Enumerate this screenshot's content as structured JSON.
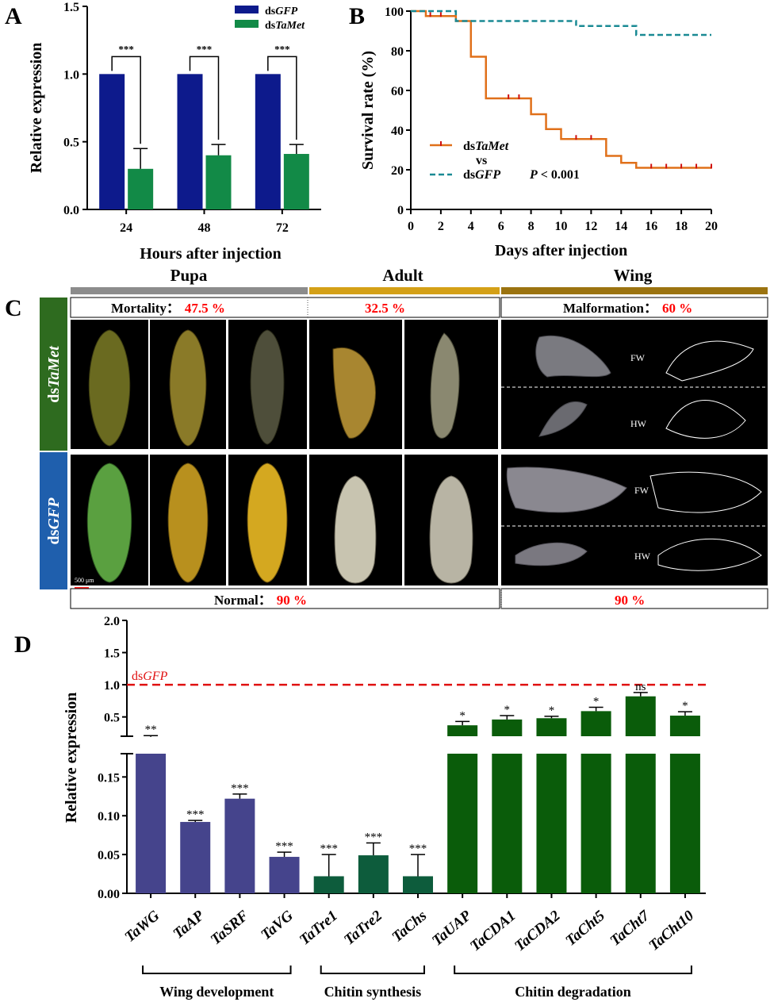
{
  "panel_labels": {
    "a": "A",
    "b": "B",
    "c": "C",
    "d": "D"
  },
  "panel_c": {
    "stages": [
      "Pupa",
      "Adult",
      "Wing"
    ],
    "stage_colors": [
      "#8c8c8c",
      "#d4a017",
      "#9b7310"
    ],
    "treatment_label_prefix": "ds",
    "treatment_met": "TaMet",
    "treatment_gfp": "GFP",
    "met_color": "#2e6b1f",
    "gfp_color": "#1f5fad",
    "mortality_label": "Mortality：",
    "mortality_value": "47.5 %",
    "adult_value": "32.5 %",
    "malformation_label": "Malformation：",
    "malformation_value": "60 %",
    "normal_label": "Normal：",
    "normal_value": "90 %",
    "wing_normal_value": "90 %",
    "fw": "FW",
    "hw": "HW",
    "scale": "500 μm"
  },
  "chart_data": [
    {
      "type": "bar",
      "panel": "A",
      "categories": [
        "24",
        "48",
        "72"
      ],
      "series": [
        {
          "name": "dsGFP",
          "prefix": "ds",
          "italic": "GFP",
          "color": "#0d1a8c",
          "values": [
            1.0,
            1.0,
            1.0
          ],
          "errors": [
            0,
            0,
            0
          ]
        },
        {
          "name": "dsTaMet",
          "prefix": "ds",
          "italic": "TaMet",
          "color": "#128a47",
          "values": [
            0.3,
            0.4,
            0.41
          ],
          "errors": [
            0.15,
            0.08,
            0.07
          ]
        }
      ],
      "significance": [
        "***",
        "***",
        "***"
      ],
      "xlabel": "Hours after injection",
      "ylabel": "Relative expression",
      "ylim": [
        0,
        1.5
      ],
      "yticks": [
        "0.0",
        "0.5",
        "1.0",
        "1.5"
      ]
    },
    {
      "type": "line",
      "panel": "B",
      "series": [
        {
          "name": "dsTaMet",
          "prefix": "ds",
          "italic": "TaMet",
          "color": "#e0701a",
          "x": [
            0,
            1,
            3,
            4,
            5,
            8,
            9,
            10,
            13,
            14,
            15,
            20
          ],
          "y": [
            100,
            97.5,
            95,
            77,
            56,
            48,
            40.5,
            35.5,
            27,
            23.5,
            21,
            21
          ],
          "censor_x": [
            1.3,
            2,
            6.5,
            7.2,
            11,
            12,
            16,
            17,
            18,
            19,
            20
          ]
        },
        {
          "name": "dsGFP",
          "prefix": "ds",
          "italic": "GFP",
          "color": "#1a8a94",
          "x": [
            0,
            3,
            8,
            11,
            15,
            20
          ],
          "y": [
            100,
            95,
            95,
            92.5,
            88,
            88
          ],
          "censor_x": []
        }
      ],
      "legend_vs": "vs",
      "p_label": "P",
      "p_value": "< 0.001",
      "xlabel": "Days after injection",
      "ylabel": "Survival rate (%)",
      "xlim": [
        0,
        20
      ],
      "ylim": [
        0,
        100
      ],
      "xticks": [
        "0",
        "2",
        "4",
        "6",
        "8",
        "10",
        "12",
        "14",
        "16",
        "18",
        "20"
      ],
      "yticks": [
        "0",
        "20",
        "40",
        "60",
        "80",
        "100"
      ]
    },
    {
      "type": "bar",
      "panel": "D",
      "categories": [
        "TaWG",
        "TaAP",
        "TaSRF",
        "TaVG",
        "TaTre1",
        "TaTre2",
        "TaChs",
        "TaUAP",
        "TaCDA1",
        "TaCDA2",
        "TaCht5",
        "TaCht7",
        "TaCht10"
      ],
      "values": [
        0.19,
        0.092,
        0.122,
        0.047,
        0.022,
        0.049,
        0.022,
        0.37,
        0.46,
        0.48,
        0.59,
        0.82,
        0.52
      ],
      "errors": [
        0.02,
        0.002,
        0.006,
        0.006,
        0.028,
        0.016,
        0.028,
        0.06,
        0.06,
        0.03,
        0.06,
        0.06,
        0.06
      ],
      "colors": [
        "#45448c",
        "#45448c",
        "#45448c",
        "#45448c",
        "#0d5c3c",
        "#0d5c3c",
        "#0d5c3c",
        "#0a5c0a",
        "#0a5c0a",
        "#0a5c0a",
        "#0a5c0a",
        "#0a5c0a",
        "#0a5c0a"
      ],
      "significance": [
        "**",
        "***",
        "***",
        "***",
        "***",
        "***",
        "***",
        "*",
        "*",
        "*",
        "*",
        "ns",
        "*"
      ],
      "reference_line": {
        "value": 1.0,
        "label_prefix": "ds",
        "label_italic": "GFP",
        "color": "#e01010"
      },
      "ylabel": "Relative expression",
      "lower_ticks": [
        "0.00",
        "0.05",
        "0.10",
        "0.15"
      ],
      "upper_ticks": [
        "0.5",
        "1.0",
        "1.5",
        "2.0"
      ],
      "lower_ylim": [
        0,
        0.18
      ],
      "upper_ylim": [
        0.2,
        2.0
      ],
      "groups": [
        {
          "label": "Wing development",
          "from": 0,
          "to": 3
        },
        {
          "label": "Chitin synthesis",
          "from": 4,
          "to": 6
        },
        {
          "label": "Chitin degradation",
          "from": 7,
          "to": 12
        }
      ]
    }
  ]
}
